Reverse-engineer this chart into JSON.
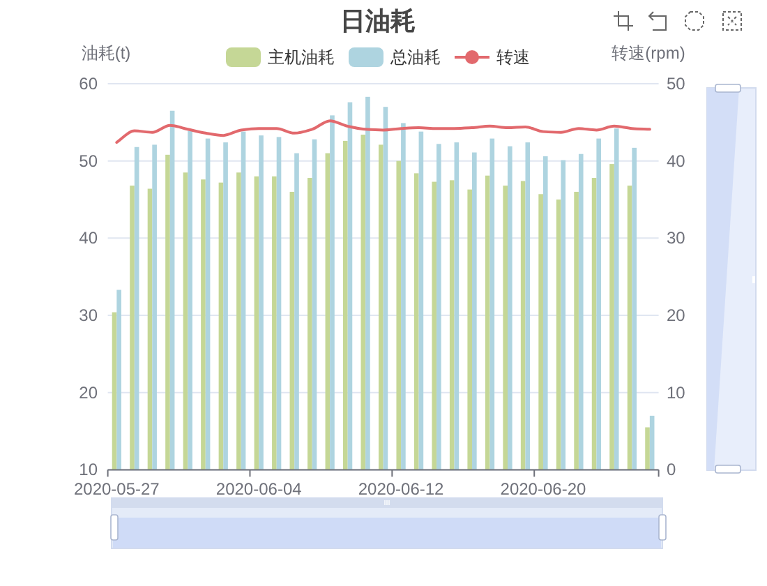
{
  "chart_data": {
    "type": "bar",
    "title": "日油耗",
    "ylabel": "油耗(t)",
    "y2label": "转速(rpm)",
    "categories": [
      "2020-05-27",
      null,
      null,
      null,
      null,
      null,
      null,
      null,
      "2020-06-04",
      null,
      null,
      null,
      null,
      null,
      null,
      null,
      "2020-06-12",
      null,
      null,
      null,
      null,
      null,
      null,
      null,
      "2020-06-20",
      null,
      null,
      null,
      null,
      null,
      null
    ],
    "ylim": [
      10,
      60
    ],
    "yticks": [
      10,
      20,
      30,
      40,
      50,
      60
    ],
    "y2lim": [
      0,
      50
    ],
    "y2ticks": [
      0,
      10,
      20,
      30,
      40,
      50
    ],
    "grid": "y",
    "legend": "top",
    "series": [
      {
        "name": "主机油耗",
        "color": "#c5d796",
        "values": [
          30.4,
          46.8,
          46.4,
          50.8,
          48.5,
          47.6,
          47.2,
          48.5,
          48.0,
          48.0,
          46.0,
          47.8,
          51.0,
          52.6,
          53.4,
          52.1,
          50.0,
          48.4,
          47.3,
          47.5,
          46.3,
          48.1,
          46.8,
          47.4,
          45.7,
          45.0,
          46.0,
          47.8,
          49.6,
          46.8,
          15.5
        ]
      },
      {
        "name": "总油耗",
        "color": "#aed4e0",
        "values": [
          33.3,
          51.8,
          52.1,
          56.5,
          53.9,
          52.9,
          52.4,
          53.8,
          53.3,
          53.1,
          51.0,
          52.8,
          55.9,
          57.6,
          58.3,
          57.0,
          54.9,
          53.8,
          52.2,
          52.4,
          51.1,
          52.9,
          51.9,
          52.4,
          50.6,
          50.1,
          50.9,
          52.9,
          54.2,
          51.7,
          17.0
        ]
      },
      {
        "name": "转速",
        "type": "line",
        "axis": "y2",
        "color": "#e2696d",
        "values": [
          42.4,
          43.9,
          43.7,
          44.6,
          44.1,
          43.6,
          43.3,
          44.0,
          44.2,
          44.2,
          43.6,
          44.1,
          45.2,
          44.5,
          44.1,
          44.0,
          44.2,
          44.3,
          44.2,
          44.2,
          44.3,
          44.5,
          44.3,
          44.4,
          43.8,
          43.7,
          44.2,
          44.0,
          44.5,
          44.2,
          44.1
        ]
      }
    ]
  }
}
